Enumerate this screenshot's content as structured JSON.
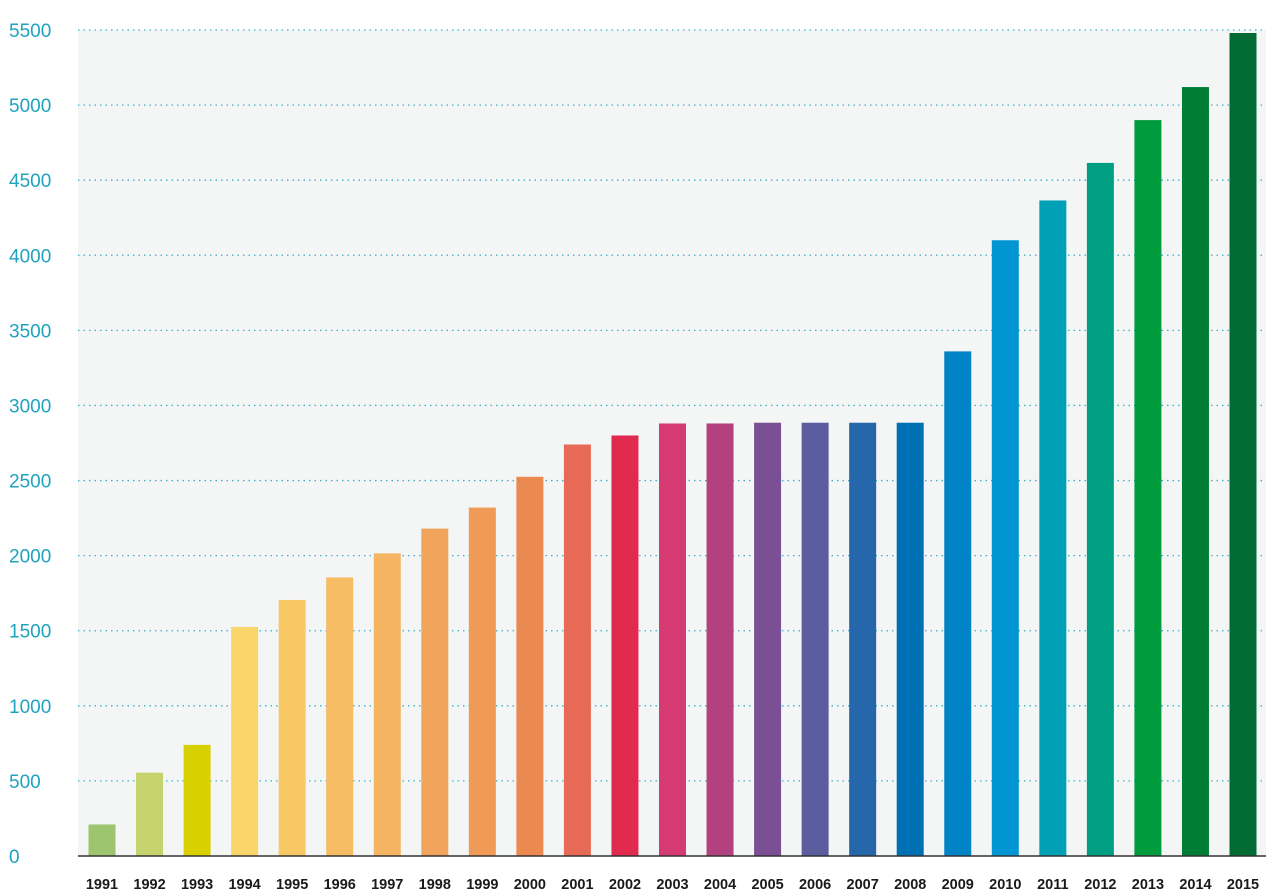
{
  "chart_data": {
    "type": "bar",
    "title": "",
    "xlabel": "",
    "ylabel": "",
    "ylim": [
      0,
      5500
    ],
    "yticks": [
      0,
      500,
      1000,
      1500,
      2000,
      2500,
      3000,
      3500,
      4000,
      4500,
      5000,
      5500
    ],
    "grid": true,
    "legend": "none",
    "background_color": "#f4f6f5",
    "tick_color": "#1ea3bf",
    "categories": [
      "1991",
      "1992",
      "1993",
      "1994",
      "1995",
      "1996",
      "1997",
      "1998",
      "1999",
      "2000",
      "2001",
      "2002",
      "2003",
      "2004",
      "2005",
      "2006",
      "2007",
      "2008",
      "2009",
      "2010",
      "2011",
      "2012",
      "2013",
      "2014",
      "2015"
    ],
    "values": [
      210,
      555,
      740,
      1525,
      1705,
      1855,
      2015,
      2180,
      2320,
      2525,
      2740,
      2800,
      2880,
      2880,
      2885,
      2885,
      2885,
      2885,
      3360,
      4100,
      4365,
      4615,
      4900,
      5120,
      5480
    ],
    "colors": [
      "#9dc46f",
      "#c5d36e",
      "#d8d000",
      "#fad569",
      "#f7c864",
      "#f5bc63",
      "#f4b462",
      "#f1a45b",
      "#ef9b57",
      "#ea8a51",
      "#e66a55",
      "#e12b4e",
      "#d63a72",
      "#b4417f",
      "#7b4f93",
      "#5b5d9f",
      "#2666aa",
      "#0070b5",
      "#0083c7",
      "#0196d3",
      "#00a0b7",
      "#009f84",
      "#009b3d",
      "#007d35",
      "#006b32"
    ]
  }
}
